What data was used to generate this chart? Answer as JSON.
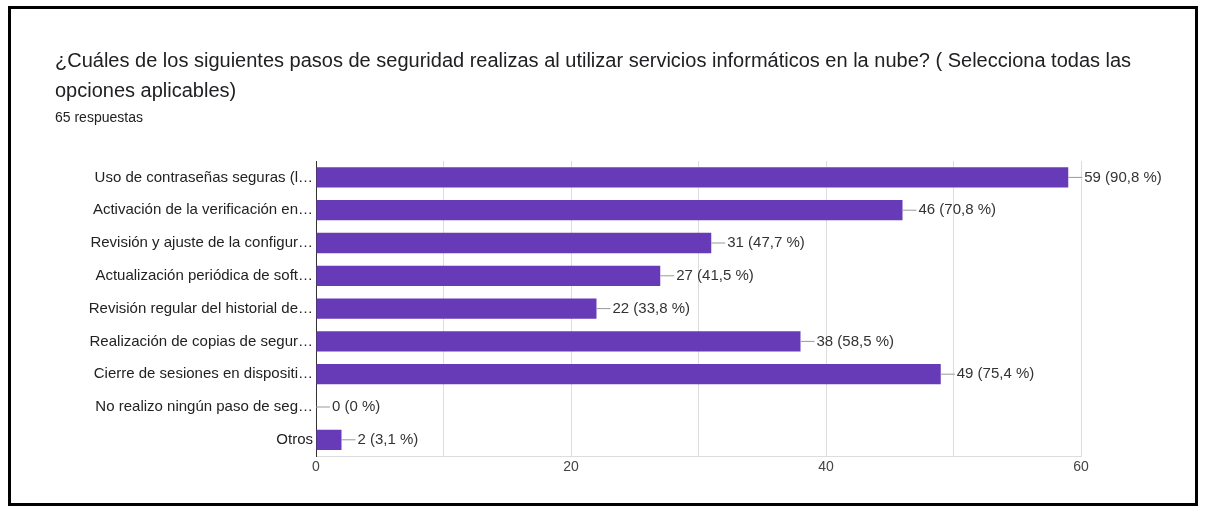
{
  "chart_data": {
    "type": "bar",
    "orientation": "horizontal",
    "title": "¿Cuáles de los siguientes pasos de seguridad realizas al utilizar servicios informáticos en la nube? ( Selecciona todas las opciones aplicables)",
    "subtitle": "65 respuestas",
    "categories": [
      "Uso de contraseñas seguras (l…",
      "Activación de la verificación en…",
      "Revisión y ajuste de la configur…",
      "Actualización periódica de soft…",
      "Revisión regular del historial de…",
      "Realización de copias de segur…",
      "Cierre de sesiones en dispositi…",
      "No realizo ningún paso de seg…",
      "Otros"
    ],
    "values": [
      59,
      46,
      31,
      27,
      22,
      38,
      49,
      0,
      2
    ],
    "value_labels": [
      "59 (90,8 %)",
      "46 (70,8 %)",
      "31 (47,7 %)",
      "27 (41,5 %)",
      "22 (33,8 %)",
      "38 (58,5 %)",
      "49 (75,4 %)",
      "0 (0 %)",
      "2 (3,1 %)"
    ],
    "color": "#673ab7",
    "xlim": [
      0,
      60
    ],
    "xticks": [
      0,
      {
        "value": 10,
        "label": null
      },
      20,
      {
        "value": 30,
        "label": null
      },
      40,
      {
        "value": 50,
        "label": null
      },
      60
    ],
    "grid": "x"
  }
}
